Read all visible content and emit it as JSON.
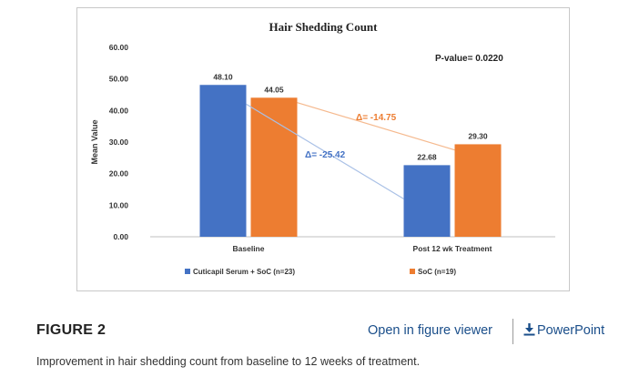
{
  "chart_data": {
    "type": "bar",
    "title": "Hair Shedding Count",
    "ylabel": "Mean Value",
    "xlabel": "",
    "ylim": [
      0,
      60
    ],
    "yticks": [
      "0.00",
      "10.00",
      "20.00",
      "30.00",
      "40.00",
      "50.00",
      "60.00"
    ],
    "categories": [
      "Baseline",
      "Post 12 wk Treatment"
    ],
    "series": [
      {
        "name": "Cuticapil Serum + SoC (n=23)",
        "values": [
          48.1,
          22.68
        ],
        "labels": [
          "48.10",
          "22.68"
        ],
        "color": "#4472c4"
      },
      {
        "name": "SoC (n=19)",
        "values": [
          44.05,
          29.3
        ],
        "labels": [
          "44.05",
          "29.30"
        ],
        "color": "#ed7d31"
      }
    ],
    "annotations": {
      "p_value": "P-value= 0.0220",
      "delta_blue": "Δ= -25.42",
      "delta_orange": "Δ= -14.75"
    },
    "legend_position": "bottom",
    "grid": false
  },
  "footer": {
    "figure_label": "FIGURE 2",
    "viewer_link": "Open in figure viewer",
    "ppt_link": "PowerPoint",
    "caption": "Improvement in hair shedding count from baseline to 12 weeks of treatment."
  }
}
